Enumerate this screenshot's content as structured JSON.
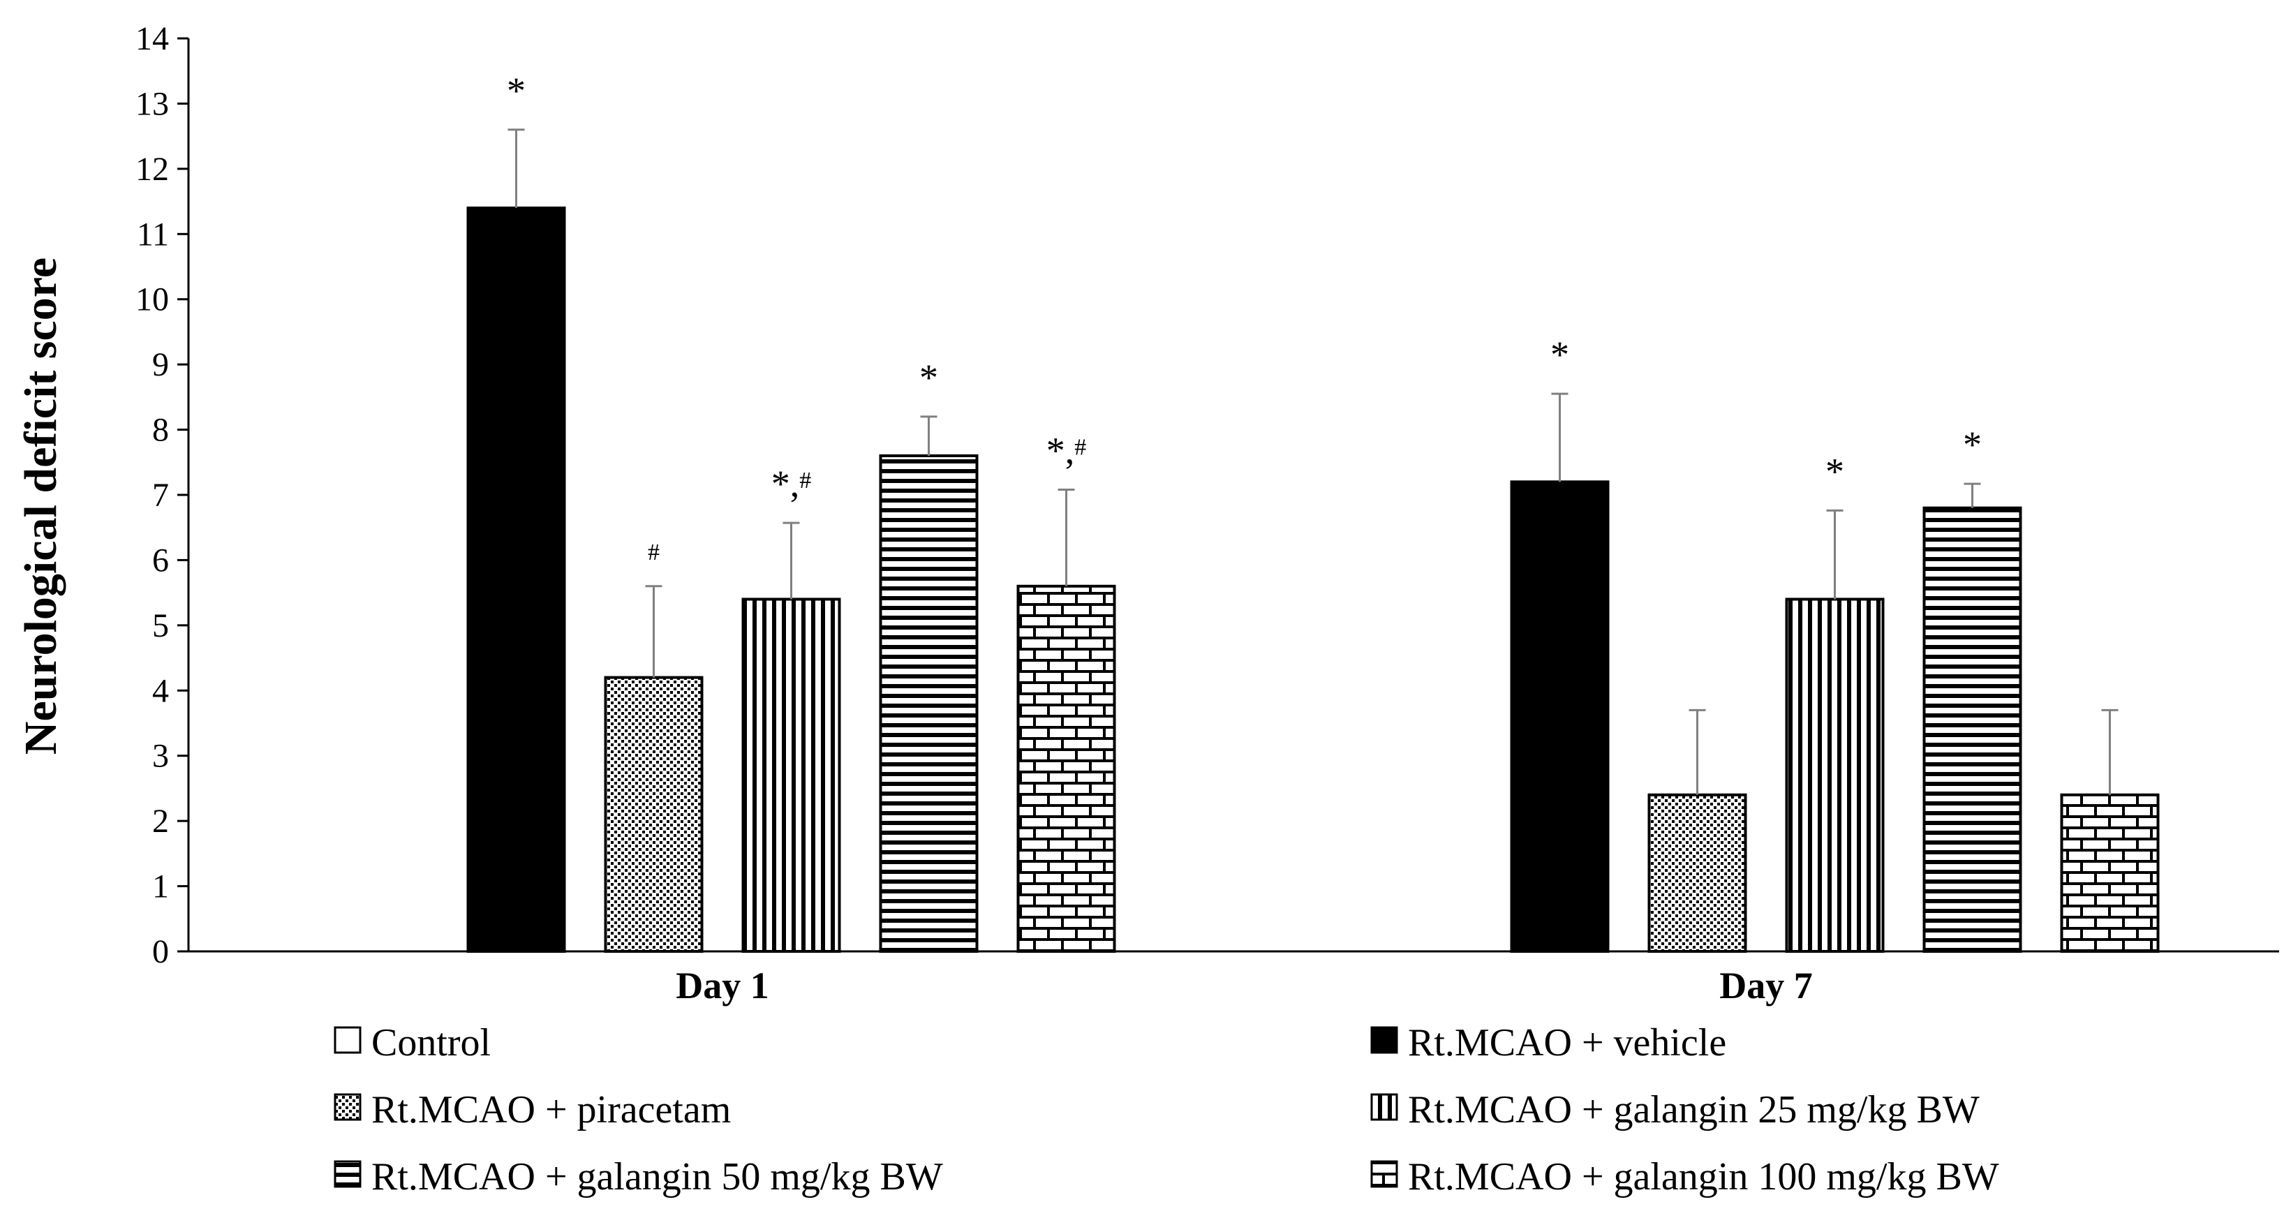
{
  "chart_data": {
    "type": "bar",
    "title": "",
    "xlabel": "",
    "ylabel": "Neurological deficit score",
    "ylim": [
      0,
      14
    ],
    "yticks": [
      0,
      1,
      2,
      3,
      4,
      5,
      6,
      7,
      8,
      9,
      10,
      11,
      12,
      13,
      14
    ],
    "grid": false,
    "legend_position": "bottom",
    "categories": [
      "Day 1",
      "Day 7"
    ],
    "series": [
      {
        "name": "Control",
        "pattern": "none",
        "values": [
          0,
          0
        ],
        "errors": [
          0,
          0
        ],
        "annotations": [
          "",
          ""
        ]
      },
      {
        "name": "Rt.MCAO + vehicle",
        "pattern": "solid",
        "values": [
          11.4,
          7.2
        ],
        "errors": [
          1.2,
          1.35
        ],
        "annotations": [
          "*",
          "*"
        ]
      },
      {
        "name": "Rt.MCAO + piracetam",
        "pattern": "dots",
        "values": [
          4.2,
          2.4
        ],
        "errors": [
          1.4,
          1.3
        ],
        "annotations": [
          "#",
          ""
        ]
      },
      {
        "name": "Rt.MCAO + galangin 25 mg/kg BW",
        "pattern": "vertical",
        "values": [
          5.4,
          5.4
        ],
        "errors": [
          1.17,
          1.36
        ],
        "annotations": [
          "*,#",
          "*"
        ]
      },
      {
        "name": "Rt.MCAO + galangin 50 mg/kg BW",
        "pattern": "horizontal",
        "values": [
          7.6,
          6.8
        ],
        "errors": [
          0.6,
          0.37
        ],
        "annotations": [
          "*",
          "*"
        ]
      },
      {
        "name": "Rt.MCAO + galangin 100 mg/kg BW",
        "pattern": "brick",
        "values": [
          5.6,
          2.4
        ],
        "errors": [
          1.48,
          1.3
        ],
        "annotations": [
          "*,#",
          ""
        ]
      }
    ],
    "colors": {
      "bar_fill": "#000000",
      "background": "#ffffff",
      "error_bar": "#808080"
    }
  }
}
